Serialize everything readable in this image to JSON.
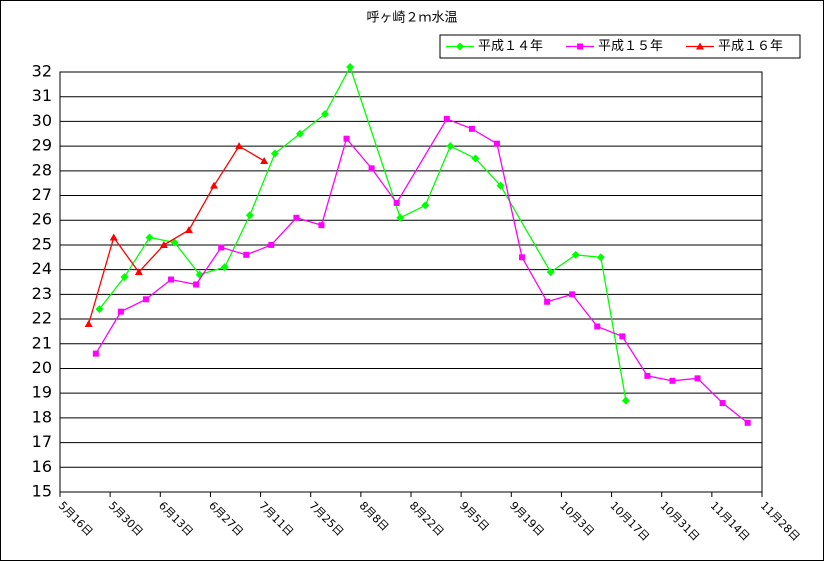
{
  "chart_data": {
    "type": "line",
    "title": "呼ヶ崎２ｍ水温",
    "xlim": [
      "05-16",
      "11-28"
    ],
    "xticks": [
      {
        "value": "05-16",
        "label": "5月16日"
      },
      {
        "value": "05-30",
        "label": "5月30日"
      },
      {
        "value": "06-13",
        "label": "6月13日"
      },
      {
        "value": "06-27",
        "label": "6月27日"
      },
      {
        "value": "07-11",
        "label": "7月11日"
      },
      {
        "value": "07-25",
        "label": "7月25日"
      },
      {
        "value": "08-08",
        "label": "8月8日"
      },
      {
        "value": "08-22",
        "label": "8月22日"
      },
      {
        "value": "09-05",
        "label": "9月5日"
      },
      {
        "value": "09-19",
        "label": "9月19日"
      },
      {
        "value": "10-03",
        "label": "10月3日"
      },
      {
        "value": "10-17",
        "label": "10月17日"
      },
      {
        "value": "10-31",
        "label": "10月31日"
      },
      {
        "value": "11-14",
        "label": "11月14日"
      },
      {
        "value": "11-28",
        "label": "11月28日"
      }
    ],
    "ylim": [
      15,
      32
    ],
    "yticks": [
      15,
      16,
      17,
      18,
      19,
      20,
      21,
      22,
      23,
      24,
      25,
      26,
      27,
      28,
      29,
      30,
      31,
      32
    ],
    "grid": true,
    "legend": "top-right",
    "series": [
      {
        "name": "平成１４年",
        "color": "#00ff00",
        "marker": "diamond",
        "x": [
          "05-27",
          "06-03",
          "06-10",
          "06-17",
          "06-24",
          "07-01",
          "07-08",
          "07-15",
          "07-22",
          "07-29",
          "08-05",
          "08-19",
          "08-26",
          "09-02",
          "09-09",
          "09-16",
          "09-30",
          "10-07",
          "10-14",
          "10-21"
        ],
        "values": [
          22.4,
          23.7,
          25.3,
          25.1,
          23.8,
          24.1,
          26.2,
          28.7,
          29.5,
          30.3,
          32.2,
          26.1,
          26.6,
          29.0,
          28.5,
          27.4,
          23.9,
          24.6,
          24.5,
          18.7
        ]
      },
      {
        "name": "平成１５年",
        "color": "#ff00ff",
        "marker": "square",
        "x": [
          "05-26",
          "06-02",
          "06-09",
          "06-16",
          "06-23",
          "06-30",
          "07-07",
          "07-14",
          "07-21",
          "07-28",
          "08-04",
          "08-11",
          "08-18",
          "09-01",
          "09-08",
          "09-15",
          "09-22",
          "09-29",
          "10-06",
          "10-13",
          "10-20",
          "10-27",
          "11-03",
          "11-10",
          "11-17",
          "11-24"
        ],
        "values": [
          20.6,
          22.3,
          22.8,
          23.6,
          23.4,
          24.9,
          24.6,
          25.0,
          26.1,
          25.8,
          29.3,
          28.1,
          26.7,
          30.1,
          29.7,
          29.1,
          24.5,
          22.7,
          23.0,
          21.7,
          21.3,
          19.7,
          19.5,
          19.6,
          18.6,
          17.8
        ]
      },
      {
        "name": "平成１６年",
        "color": "#ff0000",
        "marker": "triangle",
        "x": [
          "05-24",
          "05-31",
          "06-07",
          "06-14",
          "06-21",
          "06-28",
          "07-05",
          "07-12"
        ],
        "values": [
          21.8,
          25.3,
          23.9,
          25.0,
          25.6,
          27.4,
          29.0,
          28.4
        ]
      }
    ]
  }
}
